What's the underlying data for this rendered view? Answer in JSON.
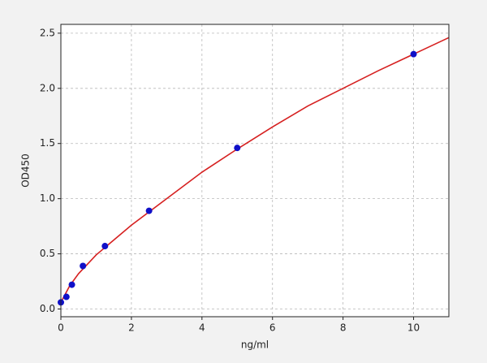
{
  "chart_data": {
    "type": "scatter",
    "xlabel": "ng/ml",
    "ylabel": "OD450",
    "points": {
      "color": "#1010c8",
      "x": [
        0,
        0.156,
        0.312,
        0.625,
        1.25,
        2.5,
        5,
        10
      ],
      "y": [
        0.06,
        0.11,
        0.22,
        0.39,
        0.57,
        0.89,
        1.46,
        2.31
      ]
    },
    "curve": {
      "color": "#d62020",
      "x": [
        0,
        0.25,
        0.5,
        1,
        2,
        3,
        4,
        5,
        6,
        7,
        8,
        9,
        10,
        11
      ],
      "y": [
        0.06,
        0.21,
        0.32,
        0.49,
        0.76,
        1.0,
        1.24,
        1.45,
        1.65,
        1.84,
        2.0,
        2.16,
        2.31,
        2.46
      ]
    },
    "xlim": [
      0,
      11
    ],
    "ylim": [
      -0.07,
      2.58
    ],
    "xticks": [
      0,
      2,
      4,
      6,
      8,
      10
    ],
    "yticks": [
      {
        "value": 0,
        "label": "0.0"
      },
      0.5,
      {
        "value": 1,
        "label": "1.0"
      },
      1.5,
      {
        "value": 2,
        "label": "2.0"
      },
      2.5
    ],
    "grid": true
  }
}
